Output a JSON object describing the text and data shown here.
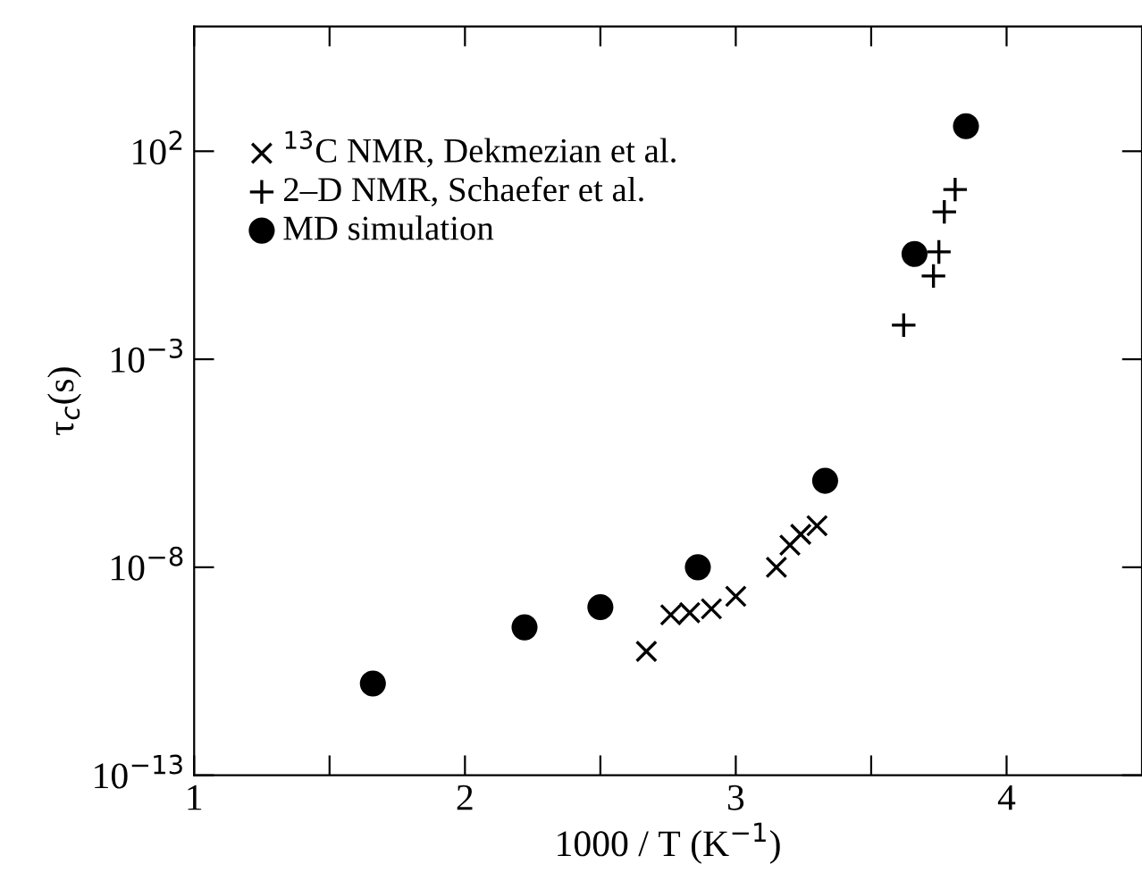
{
  "chart_data": {
    "type": "scatter",
    "xlabel": "1000 / T (K$^{−1}$)",
    "ylabel": "τ$_{c}$(s)",
    "log": "y",
    "xlim": [
      1,
      4.5
    ],
    "xticks": [
      1,
      {
        "value": 1.5,
        "label": null
      },
      2,
      {
        "value": 2.5,
        "label": null
      },
      3,
      {
        "value": 3.5,
        "label": null
      },
      4
    ],
    "ylim": [
      1e-13,
      100000.0
    ],
    "yticks": [
      {
        "value": 1e-13,
        "label": "10$^{−13}$"
      },
      {
        "value": 1e-08,
        "label": "10$^{−8}$"
      },
      {
        "value": 0.001,
        "label": "10$^{−3}$"
      },
      {
        "value": 100,
        "label": "10$^{2}$"
      }
    ],
    "legend": "top left",
    "grid": false,
    "series": [
      {
        "name": "$^{13}$C NMR, Dekmezian et al.",
        "color": "#000000",
        "marker": "cross",
        "x": [
          2.67,
          2.76,
          2.83,
          2.91,
          3.0,
          3.15,
          3.2,
          3.24,
          3.3
        ],
        "values": [
          9.5e-11,
          7.2e-10,
          8.1e-10,
          1e-09,
          2e-09,
          1e-08,
          3.4e-08,
          6.2e-08,
          1e-07
        ]
      },
      {
        "name": "2–D NMR, Schaefer et al.",
        "color": "#000000",
        "marker": "plus",
        "x": [
          3.62,
          3.73,
          3.75,
          3.77,
          3.81
        ],
        "values": [
          0.0066,
          0.1,
          0.38,
          3.5,
          12
        ]
      },
      {
        "name": "MD simulation",
        "color": "#000000",
        "marker": "circle",
        "x": [
          1.66,
          2.22,
          2.5,
          2.86,
          3.33,
          3.66,
          3.85
        ],
        "values": [
          1.6e-11,
          3.6e-10,
          1.1e-09,
          1e-08,
          1.2e-06,
          0.34,
          400
        ]
      }
    ]
  }
}
